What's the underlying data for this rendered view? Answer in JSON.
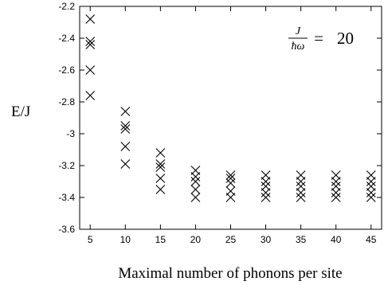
{
  "chart_data": {
    "type": "scatter",
    "title": "",
    "xlabel": "Maximal number of phonons per site",
    "ylabel": "E/J",
    "annotation": {
      "numerator": "J",
      "denominator_hbar": "ħ",
      "denominator_omega": "ω",
      "equals": "=",
      "value": "20"
    },
    "xlim": [
      3.5,
      46.5
    ],
    "ylim": [
      -3.6,
      -2.2
    ],
    "xticks": [
      5,
      10,
      15,
      20,
      25,
      30,
      35,
      40,
      45
    ],
    "yticks": [
      -3.6,
      -3.4,
      -3.2,
      -3,
      -2.8,
      -2.6,
      -2.4,
      -2.2
    ],
    "xtick_labels": [
      "5",
      "10",
      "15",
      "20",
      "25",
      "30",
      "35",
      "40",
      "45"
    ],
    "ytick_labels": [
      "-3.6",
      "-3.4",
      "-3.2",
      "-3",
      "-2.8",
      "-2.6",
      "-2.4",
      "-2.2"
    ],
    "grid": false,
    "marker": "x",
    "points": [
      {
        "x": 5,
        "y": -2.28
      },
      {
        "x": 5,
        "y": -2.42
      },
      {
        "x": 5,
        "y": -2.44
      },
      {
        "x": 5,
        "y": -2.6
      },
      {
        "x": 5,
        "y": -2.76
      },
      {
        "x": 10,
        "y": -2.86
      },
      {
        "x": 10,
        "y": -2.95
      },
      {
        "x": 10,
        "y": -2.97
      },
      {
        "x": 10,
        "y": -3.08
      },
      {
        "x": 10,
        "y": -3.19
      },
      {
        "x": 15,
        "y": -3.12
      },
      {
        "x": 15,
        "y": -3.19
      },
      {
        "x": 15,
        "y": -3.21
      },
      {
        "x": 15,
        "y": -3.28
      },
      {
        "x": 15,
        "y": -3.35
      },
      {
        "x": 20,
        "y": -3.23
      },
      {
        "x": 20,
        "y": -3.27
      },
      {
        "x": 20,
        "y": -3.3
      },
      {
        "x": 20,
        "y": -3.35
      },
      {
        "x": 20,
        "y": -3.4
      },
      {
        "x": 25,
        "y": -3.26
      },
      {
        "x": 25,
        "y": -3.28
      },
      {
        "x": 25,
        "y": -3.31
      },
      {
        "x": 25,
        "y": -3.36
      },
      {
        "x": 25,
        "y": -3.4
      },
      {
        "x": 30,
        "y": -3.26
      },
      {
        "x": 30,
        "y": -3.3
      },
      {
        "x": 30,
        "y": -3.33
      },
      {
        "x": 30,
        "y": -3.37
      },
      {
        "x": 30,
        "y": -3.4
      },
      {
        "x": 35,
        "y": -3.26
      },
      {
        "x": 35,
        "y": -3.3
      },
      {
        "x": 35,
        "y": -3.33
      },
      {
        "x": 35,
        "y": -3.37
      },
      {
        "x": 35,
        "y": -3.4
      },
      {
        "x": 40,
        "y": -3.26
      },
      {
        "x": 40,
        "y": -3.3
      },
      {
        "x": 40,
        "y": -3.33
      },
      {
        "x": 40,
        "y": -3.37
      },
      {
        "x": 40,
        "y": -3.4
      },
      {
        "x": 45,
        "y": -3.26
      },
      {
        "x": 45,
        "y": -3.3
      },
      {
        "x": 45,
        "y": -3.33
      },
      {
        "x": 45,
        "y": -3.37
      },
      {
        "x": 45,
        "y": -3.4
      }
    ]
  }
}
